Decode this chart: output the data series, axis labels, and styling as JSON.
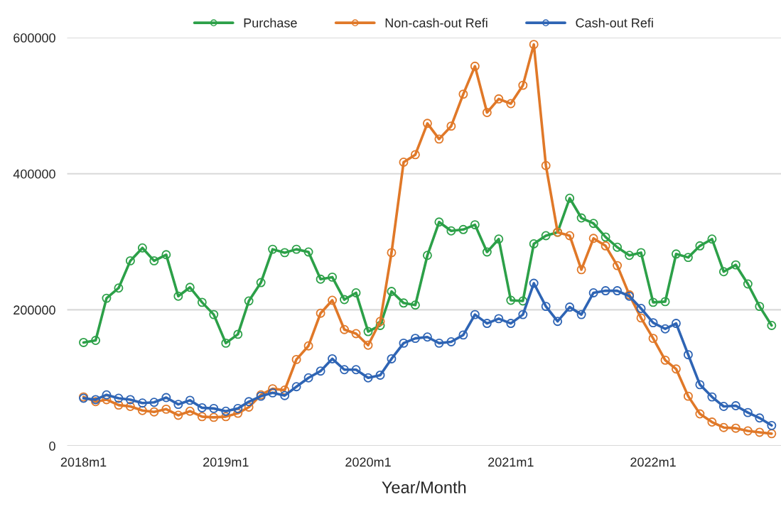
{
  "chart_data": {
    "type": "line",
    "xlabel": "Year/Month",
    "x": [
      "2018-01",
      "2018-02",
      "2018-03",
      "2018-04",
      "2018-05",
      "2018-06",
      "2018-07",
      "2018-08",
      "2018-09",
      "2018-10",
      "2018-11",
      "2018-12",
      "2019-01",
      "2019-02",
      "2019-03",
      "2019-04",
      "2019-05",
      "2019-06",
      "2019-07",
      "2019-08",
      "2019-09",
      "2019-10",
      "2019-11",
      "2019-12",
      "2020-01",
      "2020-02",
      "2020-03",
      "2020-04",
      "2020-05",
      "2020-06",
      "2020-07",
      "2020-08",
      "2020-09",
      "2020-10",
      "2020-11",
      "2020-12",
      "2021-01",
      "2021-02",
      "2021-03",
      "2021-04",
      "2021-05",
      "2021-06",
      "2021-07",
      "2021-08",
      "2021-09",
      "2021-10",
      "2021-11",
      "2021-12",
      "2022-01",
      "2022-02",
      "2022-03",
      "2022-04",
      "2022-05",
      "2022-06",
      "2022-07",
      "2022-08",
      "2022-09",
      "2022-10",
      "2022-11"
    ],
    "series": [
      {
        "name": "Purchase",
        "color": "#2ca048",
        "values": [
          152000,
          155000,
          217000,
          232000,
          272000,
          291000,
          272000,
          281000,
          220000,
          233000,
          211000,
          193000,
          151000,
          164000,
          213000,
          240000,
          289000,
          284000,
          289000,
          285000,
          245000,
          248000,
          215000,
          225000,
          168000,
          177000,
          227000,
          210000,
          207000,
          280000,
          329000,
          316000,
          318000,
          325000,
          285000,
          304000,
          214000,
          213000,
          297000,
          309000,
          314000,
          364000,
          335000,
          327000,
          307000,
          292000,
          280000,
          284000,
          211000,
          212000,
          282000,
          277000,
          294000,
          304000,
          256000,
          266000,
          238000,
          205000,
          177000
        ]
      },
      {
        "name": "Non-cash-out Refi",
        "color": "#e07828",
        "values": [
          72000,
          65000,
          68000,
          60000,
          58000,
          52000,
          50000,
          54000,
          45000,
          51000,
          43000,
          42000,
          43000,
          48000,
          57000,
          75000,
          84000,
          82000,
          127000,
          147000,
          195000,
          214000,
          171000,
          165000,
          148000,
          183000,
          284000,
          417000,
          428000,
          474000,
          451000,
          470000,
          517000,
          558000,
          490000,
          510000,
          503000,
          530000,
          590000,
          412000,
          314000,
          309000,
          259000,
          305000,
          294000,
          265000,
          222000,
          188000,
          158000,
          126000,
          113000,
          73000,
          47000,
          35000,
          27000,
          26000,
          22000,
          20000,
          18000
        ]
      },
      {
        "name": "Cash-out Refi",
        "color": "#2e64b4",
        "values": [
          70000,
          68000,
          75000,
          70000,
          68000,
          63000,
          64000,
          71000,
          61000,
          67000,
          56000,
          55000,
          51000,
          55000,
          65000,
          73000,
          78000,
          74000,
          87000,
          100000,
          110000,
          128000,
          112000,
          112000,
          100000,
          104000,
          128000,
          151000,
          158000,
          160000,
          151000,
          153000,
          163000,
          193000,
          180000,
          187000,
          180000,
          193000,
          239000,
          205000,
          183000,
          204000,
          193000,
          225000,
          228000,
          228000,
          220000,
          202000,
          181000,
          172000,
          180000,
          134000,
          90000,
          72000,
          58000,
          59000,
          49000,
          41000,
          30000
        ]
      }
    ],
    "xlim": [
      "2017-11-20",
      "2022-11-25"
    ],
    "xticks": [
      {
        "value": "2018-01",
        "label": "2018m1"
      },
      {
        "value": "2019-01",
        "label": "2019m1"
      },
      {
        "value": "2020-01",
        "label": "2020m1"
      },
      {
        "value": "2021-01",
        "label": "2021m1"
      },
      {
        "value": "2022-01",
        "label": "2022m1"
      }
    ],
    "ylim": [
      0,
      600000
    ],
    "yticks": [
      0,
      200000,
      400000,
      600000
    ],
    "grid": "y",
    "legend": "top",
    "marker": "circle",
    "line_style": "solid"
  }
}
